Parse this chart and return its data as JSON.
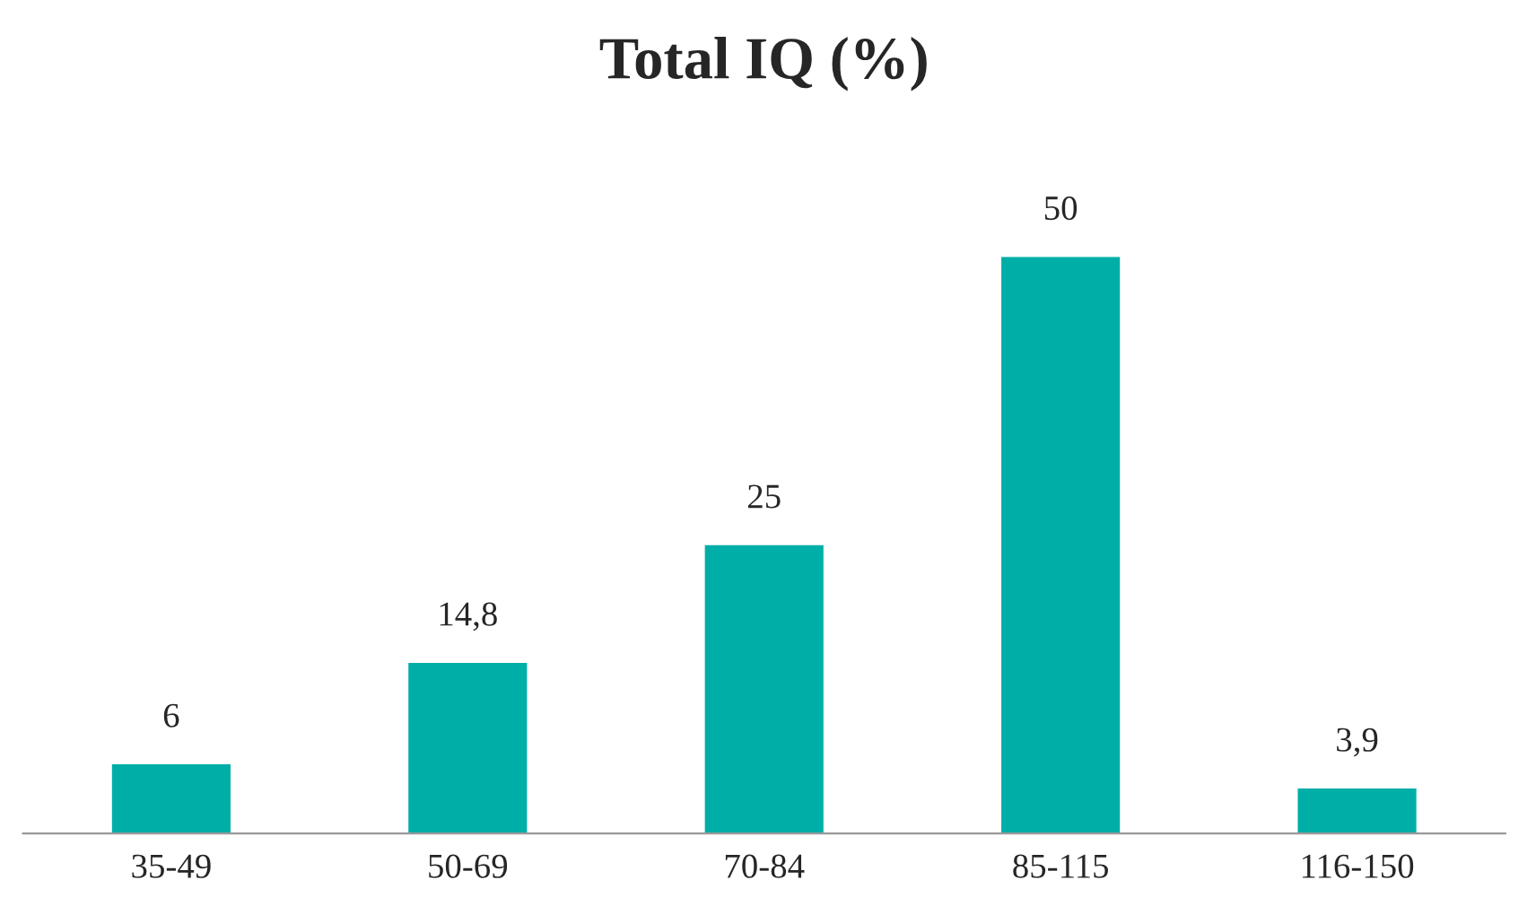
{
  "chart_data": {
    "type": "bar",
    "title": "Total IQ (%)",
    "categories": [
      "35-49",
      "50-69",
      "70-84",
      "85-115",
      "116-150"
    ],
    "values": [
      6,
      14.8,
      25,
      50,
      3.9
    ],
    "value_labels": [
      "6",
      "14,8",
      "25",
      "50",
      "3,9"
    ],
    "color": "#00aea8",
    "grid": false,
    "legend": false
  }
}
